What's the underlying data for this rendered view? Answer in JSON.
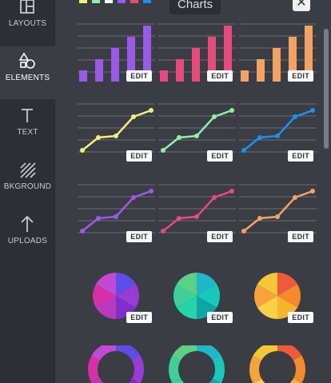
{
  "sidebar": {
    "items": [
      {
        "label": "LAYOUTS",
        "icon": "layouts-icon",
        "active": false
      },
      {
        "label": "ELEMENTS",
        "icon": "shapes-icon",
        "active": true
      },
      {
        "label": "TEXT",
        "icon": "text-icon",
        "active": false
      },
      {
        "label": "BKGROUND",
        "icon": "background-icon",
        "active": false
      },
      {
        "label": "UPLOADS",
        "icon": "upload-icon",
        "active": false
      }
    ]
  },
  "panel": {
    "title": "Charts",
    "close_icon": "close-icon",
    "edit_label": "EDIT"
  },
  "colors": {
    "purple": "#9b59e8",
    "pink": "#e84a7b",
    "orange": "#f4a261",
    "yellow": "#eef07a",
    "green": "#8ef0a8",
    "blue": "#1d8ff0",
    "grid": "#6a6d72"
  },
  "top_strip_colors": [
    "#eef07a",
    "#8ef0a8",
    "#ffffff",
    "#9b59e8",
    "#e84a7b",
    "#1d8ff0"
  ]
}
